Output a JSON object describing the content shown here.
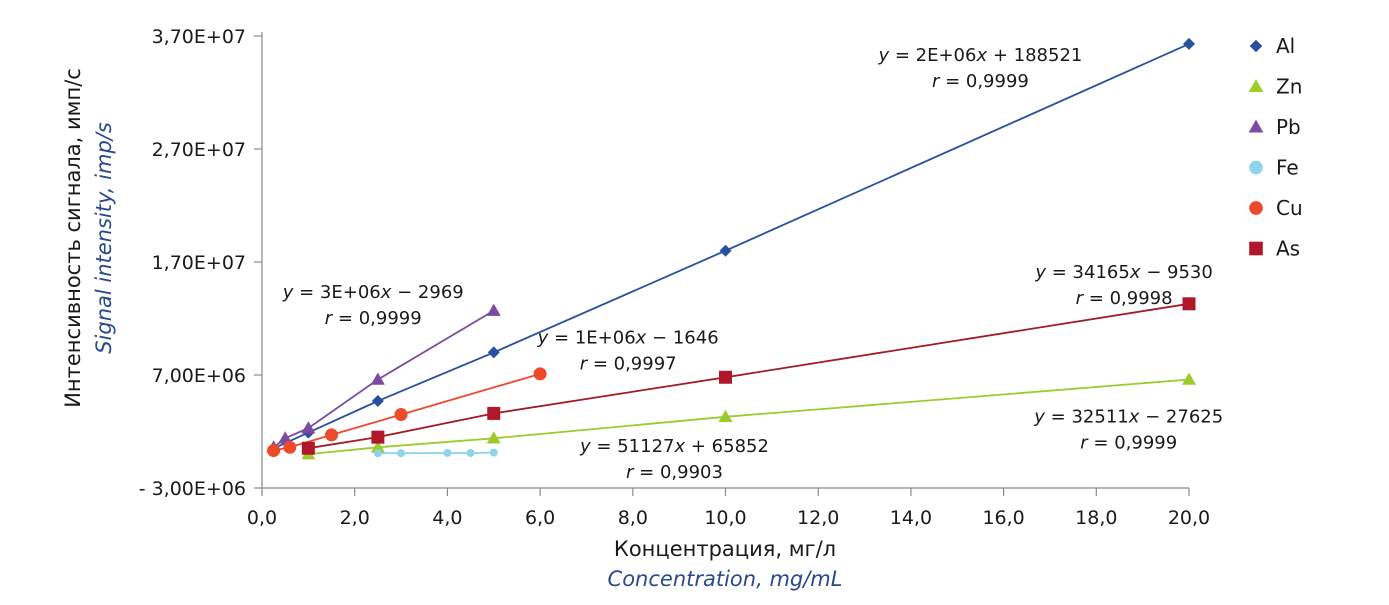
{
  "chart_data": {
    "type": "scatter",
    "xlabel": "Концентрация, мг/л",
    "xlabel_en": "Concentration, mg/mL",
    "ylabel": "Интенсивность сигнала, имп/с",
    "ylabel_en": "Signal intensity, imp/s",
    "xlim": [
      0,
      20
    ],
    "ylim": [
      -3000000,
      37000000
    ],
    "x_ticks": [
      "0,0",
      "2,0",
      "4,0",
      "6,0",
      "8,0",
      "10,0",
      "12,0",
      "14,0",
      "16,0",
      "18,0",
      "20,0"
    ],
    "y_ticks": [
      {
        "value": -3000000,
        "label": "- 3,00E+06"
      },
      {
        "value": 7000000,
        "label": "7,00E+06"
      },
      {
        "value": 17000000,
        "label": "1,70E+07"
      },
      {
        "value": 27000000,
        "label": "2,70E+07"
      },
      {
        "value": 37000000,
        "label": "3,70E+07"
      }
    ],
    "grid": false,
    "legend_position": "right",
    "series": [
      {
        "name": "Al",
        "marker": "diamond",
        "color": "#2a4f9e",
        "line_color": "#2a4f9e",
        "x": [
          0.25,
          1,
          2.5,
          5,
          10,
          20
        ],
        "y": [
          500000,
          1900000,
          4700000,
          9000000,
          18000000,
          36300000
        ]
      },
      {
        "name": "Zn",
        "marker": "triangle",
        "color": "#9ccc2c",
        "line_color": "#9ccc2c",
        "x": [
          1,
          2.5,
          5,
          10,
          20
        ],
        "y": [
          0,
          600000,
          1400000,
          3300000,
          6600000
        ]
      },
      {
        "name": "Pb",
        "marker": "triangle",
        "color": "#7a4ba0",
        "line_color": "#7a4ba0",
        "x": [
          0.25,
          0.5,
          1,
          2.5,
          5
        ],
        "y": [
          600000,
          1400000,
          2300000,
          6600000,
          12700000
        ]
      },
      {
        "name": "Fe",
        "marker": "circle-small",
        "color": "#8fd3ea",
        "line_color": "#8fd3ea",
        "x": [
          2.5,
          3,
          4,
          4.5,
          5
        ],
        "y": [
          80000,
          80000,
          100000,
          100000,
          130000
        ]
      },
      {
        "name": "Cu",
        "marker": "circle",
        "color": "#ec4a2a",
        "line_color": "#ec4a2a",
        "x": [
          0.25,
          0.6,
          1.5,
          3,
          6
        ],
        "y": [
          320000,
          600000,
          1700000,
          3500000,
          7100000
        ]
      },
      {
        "name": "As",
        "marker": "square",
        "color": "#b0182a",
        "line_color": "#a01c26",
        "x": [
          1,
          2.5,
          5,
          10,
          20
        ],
        "y": [
          520000,
          1500000,
          3600000,
          6800000,
          13300000
        ]
      }
    ],
    "annotations": [
      {
        "lines": [
          "y = 2E+06x + 188521",
          "r = 0,9999"
        ],
        "x": 15.5,
        "y": 34800000
      },
      {
        "lines": [
          "y = 34165x − 9530",
          "r = 0,9998"
        ],
        "x": 18.6,
        "y": 15600000
      },
      {
        "lines": [
          "y = 3E+06x − 2969",
          "r = 0,9999"
        ],
        "x": 2.4,
        "y": 13800000
      },
      {
        "lines": [
          "y = 1E+06x − 1646",
          "r = 0,9997"
        ],
        "x": 7.9,
        "y": 9800000
      },
      {
        "lines": [
          "y = 32511x − 27625",
          "r = 0,9999"
        ],
        "x": 18.7,
        "y": 2800000
      },
      {
        "lines": [
          "y = 51127x + 65852",
          "r = 0,9903"
        ],
        "x": 8.9,
        "y": 200000
      }
    ]
  }
}
